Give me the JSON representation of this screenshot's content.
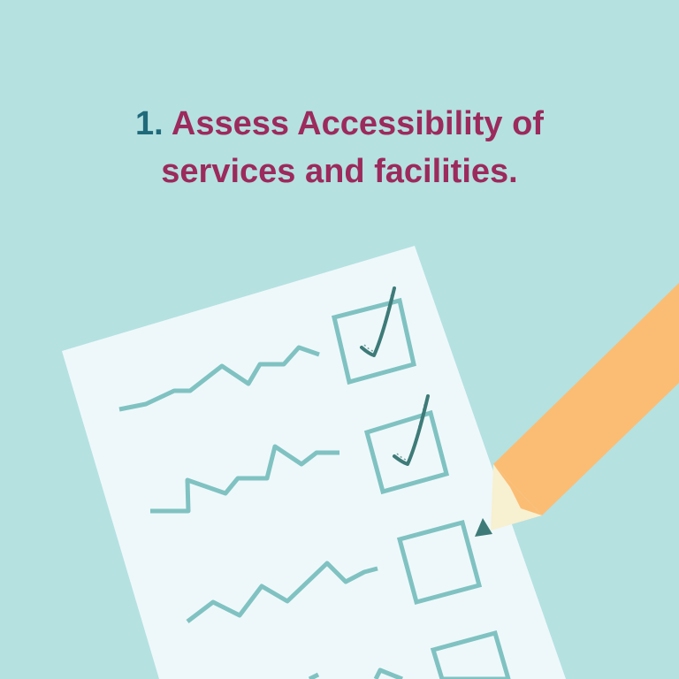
{
  "heading": {
    "number": "1.",
    "line1": "Assess Accessibility of",
    "line2": "services and facilities."
  },
  "checklist": {
    "items": [
      {
        "checked": true
      },
      {
        "checked": true
      },
      {
        "checked": false
      },
      {
        "checked": false
      }
    ]
  },
  "colors": {
    "background": "#b5e1e1",
    "paper": "#eef8fa",
    "box_outline": "#80c2c2",
    "checkmark": "#3e7b78",
    "pencil_body": "#fbbd74",
    "pencil_wood": "#f7f0d1",
    "pencil_tip": "#3e7b78",
    "heading_text": "#9c2a5c",
    "number_text": "#1f6a7a"
  },
  "icons": {
    "pencil": "pencil-icon",
    "checkmark": "checkmark-icon",
    "checkbox": "checkbox-icon"
  }
}
